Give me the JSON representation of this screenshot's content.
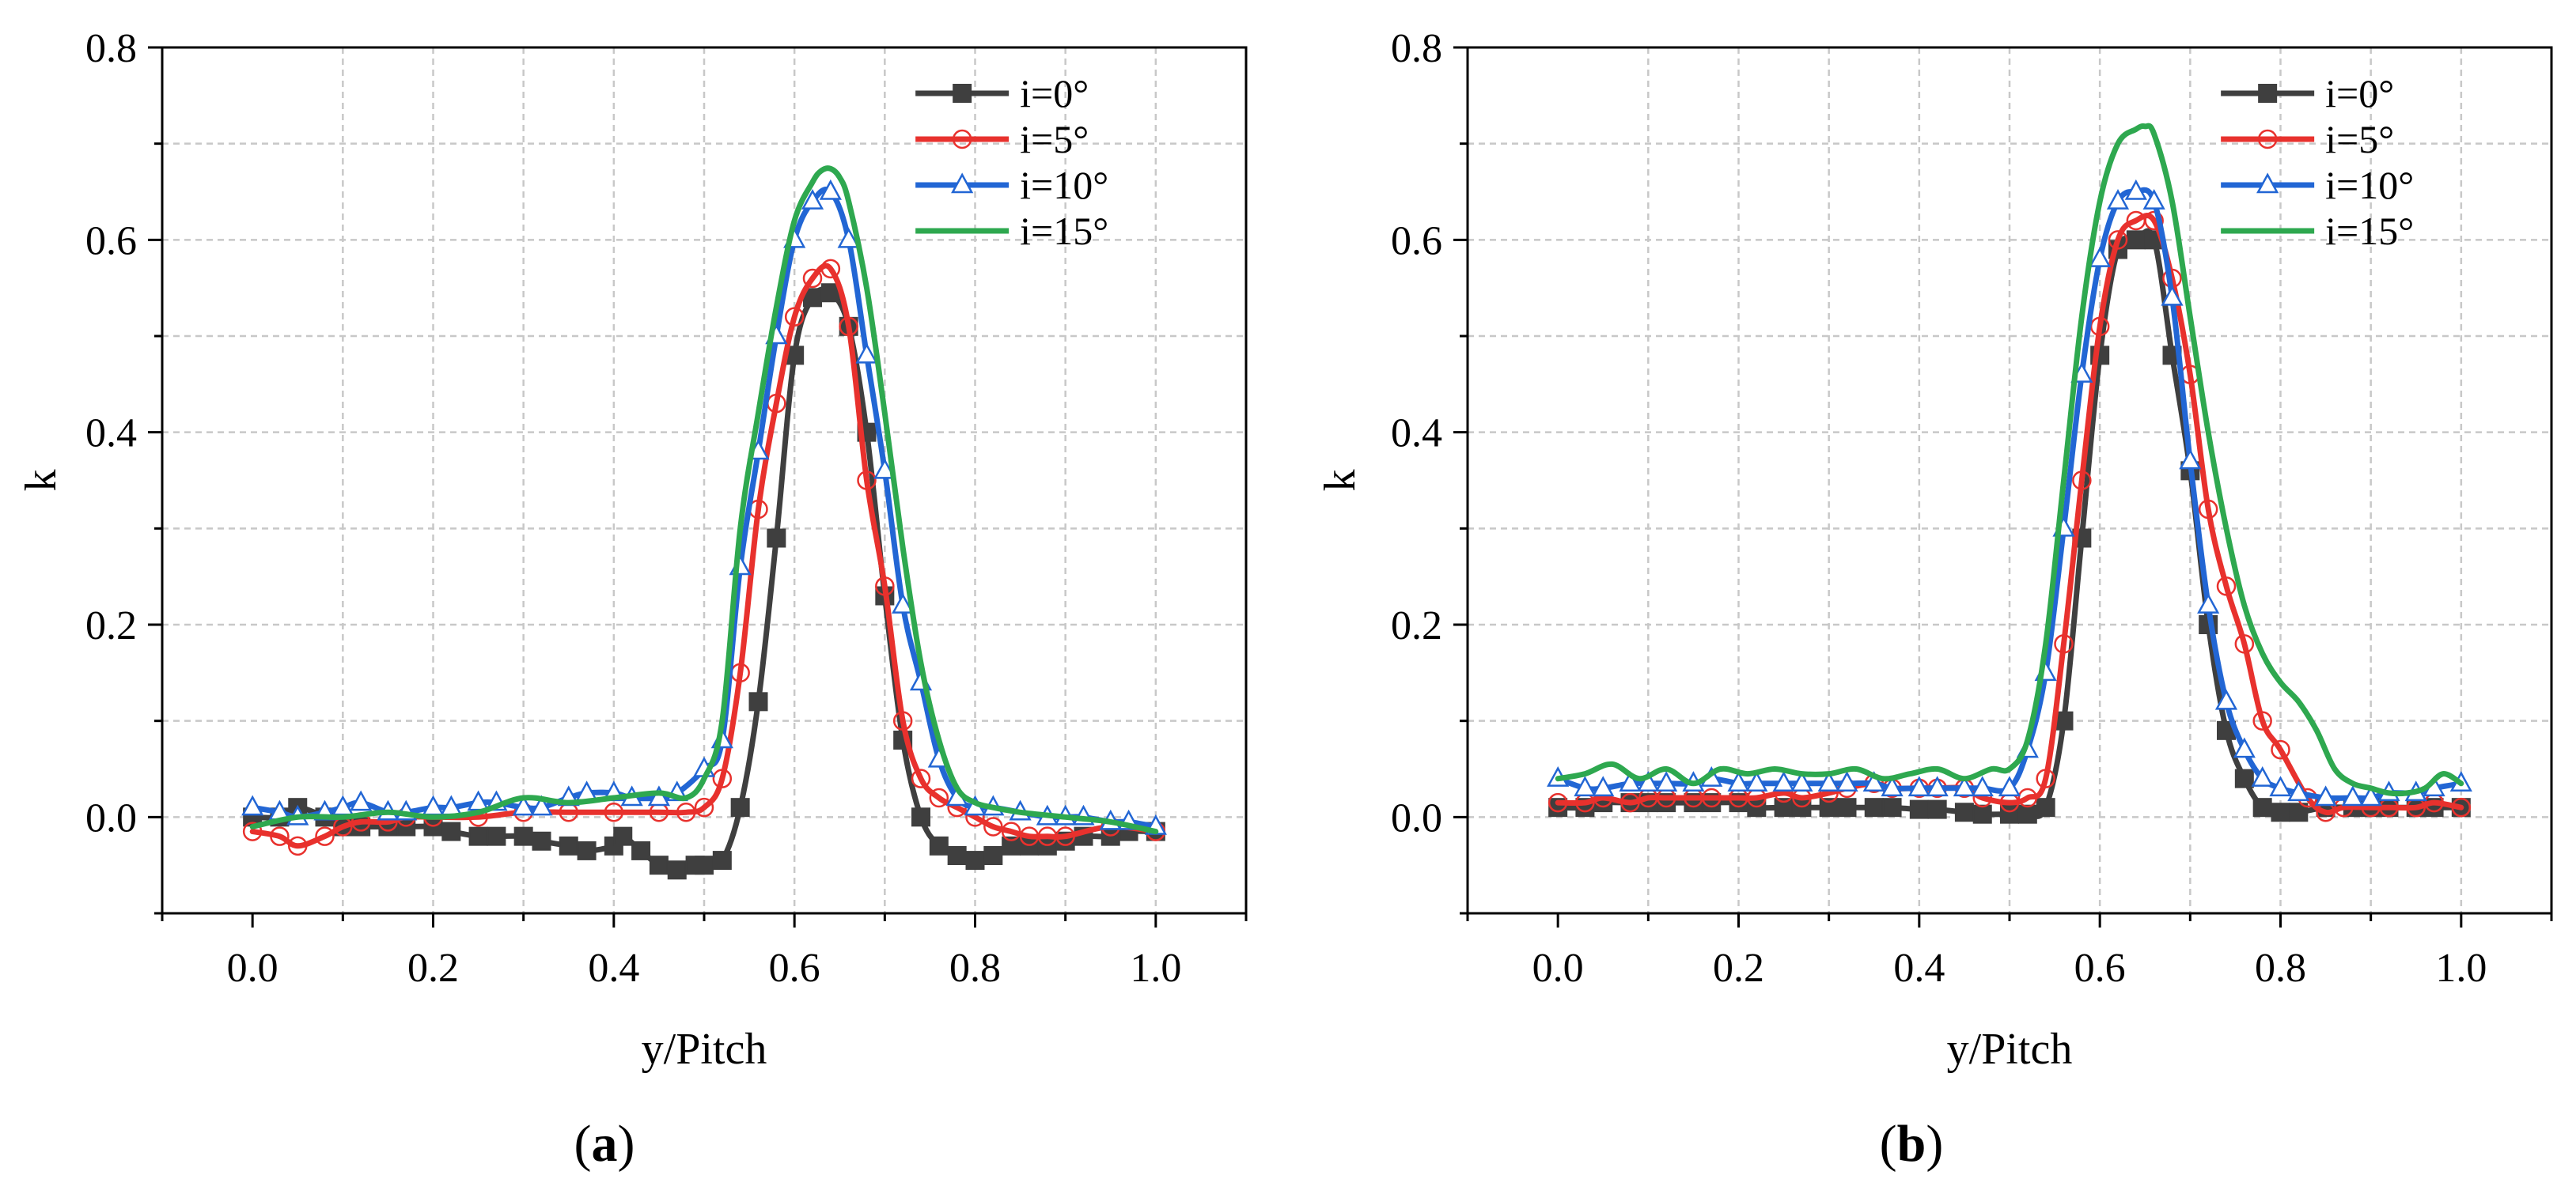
{
  "chart_data": [
    {
      "type": "line",
      "panel_label": "(a)",
      "title": "",
      "xlabel": "y/Pitch",
      "ylabel": "k",
      "xlim": [
        -0.1,
        1.1
      ],
      "ylim": [
        -0.1,
        0.8
      ],
      "xticks": [
        "0.0",
        "0.2",
        "0.4",
        "0.6",
        "0.8",
        "1.0"
      ],
      "yticks": [
        "0.0",
        "0.2",
        "0.4",
        "0.6",
        "0.8"
      ],
      "grid": true,
      "legend_position": "top-right",
      "series": [
        {
          "name": "i=0°",
          "color": "#3f3f3f",
          "marker": "square-filled",
          "x": [
            0.0,
            0.03,
            0.05,
            0.08,
            0.1,
            0.12,
            0.15,
            0.17,
            0.2,
            0.22,
            0.25,
            0.27,
            0.3,
            0.32,
            0.35,
            0.37,
            0.4,
            0.41,
            0.43,
            0.45,
            0.47,
            0.49,
            0.5,
            0.52,
            0.54,
            0.56,
            0.58,
            0.6,
            0.62,
            0.64,
            0.66,
            0.68,
            0.7,
            0.72,
            0.74,
            0.76,
            0.78,
            0.8,
            0.82,
            0.84,
            0.86,
            0.88,
            0.9,
            0.92,
            0.95,
            0.97,
            1.0
          ],
          "y": [
            0.0,
            0.0,
            0.01,
            0.0,
            -0.01,
            -0.01,
            -0.01,
            -0.01,
            -0.01,
            -0.015,
            -0.02,
            -0.02,
            -0.02,
            -0.025,
            -0.03,
            -0.035,
            -0.03,
            -0.02,
            -0.035,
            -0.05,
            -0.055,
            -0.05,
            -0.05,
            -0.045,
            0.01,
            0.12,
            0.29,
            0.48,
            0.54,
            0.545,
            0.51,
            0.4,
            0.23,
            0.08,
            0.0,
            -0.03,
            -0.04,
            -0.045,
            -0.04,
            -0.03,
            -0.03,
            -0.03,
            -0.025,
            -0.02,
            -0.02,
            -0.015,
            -0.015
          ]
        },
        {
          "name": "i=5°",
          "color": "#e8312d",
          "marker": "circle-open",
          "x": [
            0.0,
            0.03,
            0.05,
            0.08,
            0.1,
            0.12,
            0.15,
            0.17,
            0.2,
            0.25,
            0.3,
            0.35,
            0.4,
            0.45,
            0.48,
            0.5,
            0.52,
            0.54,
            0.56,
            0.58,
            0.6,
            0.62,
            0.64,
            0.66,
            0.68,
            0.7,
            0.72,
            0.74,
            0.76,
            0.78,
            0.8,
            0.82,
            0.84,
            0.86,
            0.88,
            0.9,
            0.95,
            1.0
          ],
          "y": [
            -0.015,
            -0.02,
            -0.03,
            -0.02,
            -0.01,
            -0.005,
            -0.005,
            0.0,
            0.0,
            0.0,
            0.005,
            0.005,
            0.005,
            0.005,
            0.005,
            0.01,
            0.04,
            0.15,
            0.32,
            0.43,
            0.52,
            0.56,
            0.57,
            0.51,
            0.35,
            0.24,
            0.1,
            0.04,
            0.02,
            0.01,
            0.0,
            -0.01,
            -0.015,
            -0.02,
            -0.02,
            -0.02,
            -0.01,
            -0.015
          ]
        },
        {
          "name": "i=10°",
          "color": "#2266d4",
          "marker": "triangle-open",
          "x": [
            0.0,
            0.03,
            0.05,
            0.08,
            0.1,
            0.12,
            0.15,
            0.17,
            0.2,
            0.22,
            0.25,
            0.27,
            0.3,
            0.32,
            0.35,
            0.37,
            0.4,
            0.42,
            0.45,
            0.47,
            0.5,
            0.52,
            0.54,
            0.56,
            0.58,
            0.6,
            0.62,
            0.64,
            0.66,
            0.68,
            0.7,
            0.72,
            0.74,
            0.76,
            0.78,
            0.8,
            0.82,
            0.85,
            0.88,
            0.9,
            0.92,
            0.95,
            0.97,
            1.0
          ],
          "y": [
            0.01,
            0.005,
            0.0,
            0.005,
            0.01,
            0.015,
            0.005,
            0.005,
            0.01,
            0.01,
            0.015,
            0.015,
            0.01,
            0.01,
            0.02,
            0.025,
            0.025,
            0.02,
            0.02,
            0.025,
            0.05,
            0.08,
            0.26,
            0.38,
            0.5,
            0.6,
            0.64,
            0.65,
            0.6,
            0.48,
            0.36,
            0.22,
            0.14,
            0.06,
            0.02,
            0.01,
            0.01,
            0.005,
            0.0,
            0.0,
            0.0,
            -0.005,
            -0.005,
            -0.01
          ]
        },
        {
          "name": "i=15°",
          "color": "#2ea84f",
          "marker": "none",
          "x": [
            0.0,
            0.05,
            0.1,
            0.15,
            0.2,
            0.25,
            0.3,
            0.35,
            0.4,
            0.45,
            0.48,
            0.5,
            0.52,
            0.54,
            0.56,
            0.58,
            0.6,
            0.62,
            0.63,
            0.64,
            0.65,
            0.66,
            0.68,
            0.7,
            0.72,
            0.74,
            0.76,
            0.78,
            0.8,
            0.82,
            0.85,
            0.9,
            0.95,
            1.0
          ],
          "y": [
            -0.01,
            0.0,
            0.0,
            0.005,
            0.0,
            0.005,
            0.02,
            0.015,
            0.02,
            0.025,
            0.02,
            0.04,
            0.1,
            0.3,
            0.42,
            0.53,
            0.62,
            0.66,
            0.672,
            0.674,
            0.665,
            0.64,
            0.55,
            0.42,
            0.28,
            0.16,
            0.08,
            0.03,
            0.015,
            0.01,
            0.005,
            0.0,
            -0.005,
            -0.015
          ]
        }
      ]
    },
    {
      "type": "line",
      "panel_label": "(b)",
      "title": "",
      "xlabel": "y/Pitch",
      "ylabel": "k",
      "xlim": [
        -0.1,
        1.1
      ],
      "ylim": [
        -0.1,
        0.8
      ],
      "xticks": [
        "0.0",
        "0.2",
        "0.4",
        "0.6",
        "0.8",
        "1.0"
      ],
      "yticks": [
        "0.0",
        "0.2",
        "0.4",
        "0.6",
        "0.8"
      ],
      "grid": true,
      "legend_position": "top-right",
      "series": [
        {
          "name": "i=0°",
          "color": "#3f3f3f",
          "marker": "square-filled",
          "x": [
            0.0,
            0.03,
            0.05,
            0.08,
            0.1,
            0.12,
            0.15,
            0.17,
            0.2,
            0.22,
            0.25,
            0.27,
            0.3,
            0.32,
            0.35,
            0.37,
            0.4,
            0.42,
            0.45,
            0.47,
            0.5,
            0.52,
            0.54,
            0.56,
            0.58,
            0.6,
            0.62,
            0.64,
            0.66,
            0.68,
            0.7,
            0.72,
            0.74,
            0.76,
            0.78,
            0.8,
            0.82,
            0.85,
            0.88,
            0.9,
            0.92,
            0.95,
            0.97,
            1.0
          ],
          "y": [
            0.01,
            0.01,
            0.015,
            0.015,
            0.015,
            0.015,
            0.015,
            0.015,
            0.015,
            0.01,
            0.01,
            0.01,
            0.01,
            0.01,
            0.01,
            0.01,
            0.008,
            0.008,
            0.005,
            0.003,
            0.003,
            0.003,
            0.01,
            0.1,
            0.29,
            0.48,
            0.59,
            0.6,
            0.6,
            0.48,
            0.36,
            0.2,
            0.09,
            0.04,
            0.01,
            0.005,
            0.005,
            0.01,
            0.01,
            0.01,
            0.01,
            0.01,
            0.01,
            0.01
          ]
        },
        {
          "name": "i=5°",
          "color": "#e8312d",
          "marker": "circle-open",
          "x": [
            0.0,
            0.03,
            0.05,
            0.08,
            0.1,
            0.12,
            0.15,
            0.17,
            0.2,
            0.22,
            0.25,
            0.27,
            0.3,
            0.32,
            0.35,
            0.37,
            0.4,
            0.42,
            0.45,
            0.47,
            0.5,
            0.52,
            0.54,
            0.56,
            0.58,
            0.6,
            0.62,
            0.64,
            0.66,
            0.68,
            0.7,
            0.72,
            0.74,
            0.76,
            0.78,
            0.8,
            0.83,
            0.85,
            0.87,
            0.9,
            0.92,
            0.95,
            0.97,
            1.0
          ],
          "y": [
            0.015,
            0.015,
            0.02,
            0.015,
            0.02,
            0.02,
            0.02,
            0.02,
            0.02,
            0.02,
            0.025,
            0.02,
            0.025,
            0.03,
            0.035,
            0.03,
            0.03,
            0.03,
            0.03,
            0.02,
            0.015,
            0.02,
            0.04,
            0.18,
            0.35,
            0.51,
            0.6,
            0.62,
            0.62,
            0.56,
            0.46,
            0.32,
            0.24,
            0.18,
            0.1,
            0.07,
            0.02,
            0.005,
            0.01,
            0.01,
            0.01,
            0.01,
            0.015,
            0.01
          ]
        },
        {
          "name": "i=10°",
          "color": "#2266d4",
          "marker": "triangle-open",
          "x": [
            0.0,
            0.03,
            0.05,
            0.08,
            0.1,
            0.12,
            0.15,
            0.17,
            0.2,
            0.22,
            0.25,
            0.27,
            0.3,
            0.32,
            0.35,
            0.37,
            0.4,
            0.42,
            0.45,
            0.47,
            0.5,
            0.52,
            0.54,
            0.56,
            0.58,
            0.6,
            0.62,
            0.64,
            0.66,
            0.68,
            0.7,
            0.72,
            0.74,
            0.76,
            0.78,
            0.8,
            0.82,
            0.85,
            0.88,
            0.9,
            0.92,
            0.95,
            0.97,
            1.0
          ],
          "y": [
            0.04,
            0.03,
            0.03,
            0.035,
            0.035,
            0.035,
            0.035,
            0.04,
            0.035,
            0.035,
            0.035,
            0.035,
            0.035,
            0.035,
            0.035,
            0.03,
            0.03,
            0.03,
            0.03,
            0.03,
            0.03,
            0.07,
            0.15,
            0.3,
            0.46,
            0.58,
            0.64,
            0.65,
            0.64,
            0.54,
            0.37,
            0.22,
            0.12,
            0.07,
            0.04,
            0.03,
            0.025,
            0.02,
            0.02,
            0.02,
            0.025,
            0.025,
            0.03,
            0.035
          ]
        },
        {
          "name": "i=15°",
          "color": "#2ea84f",
          "marker": "none",
          "x": [
            0.0,
            0.03,
            0.06,
            0.09,
            0.12,
            0.15,
            0.18,
            0.21,
            0.24,
            0.27,
            0.3,
            0.33,
            0.36,
            0.39,
            0.42,
            0.45,
            0.48,
            0.5,
            0.52,
            0.54,
            0.56,
            0.58,
            0.6,
            0.62,
            0.64,
            0.65,
            0.66,
            0.68,
            0.7,
            0.72,
            0.74,
            0.76,
            0.78,
            0.8,
            0.82,
            0.84,
            0.86,
            0.88,
            0.9,
            0.92,
            0.94,
            0.96,
            0.98,
            1.0
          ],
          "y": [
            0.04,
            0.045,
            0.055,
            0.04,
            0.05,
            0.035,
            0.05,
            0.045,
            0.05,
            0.045,
            0.045,
            0.05,
            0.04,
            0.045,
            0.05,
            0.04,
            0.05,
            0.05,
            0.08,
            0.18,
            0.35,
            0.52,
            0.64,
            0.7,
            0.715,
            0.718,
            0.71,
            0.64,
            0.52,
            0.4,
            0.3,
            0.22,
            0.17,
            0.14,
            0.12,
            0.09,
            0.05,
            0.035,
            0.03,
            0.025,
            0.025,
            0.03,
            0.045,
            0.035
          ]
        }
      ]
    }
  ]
}
